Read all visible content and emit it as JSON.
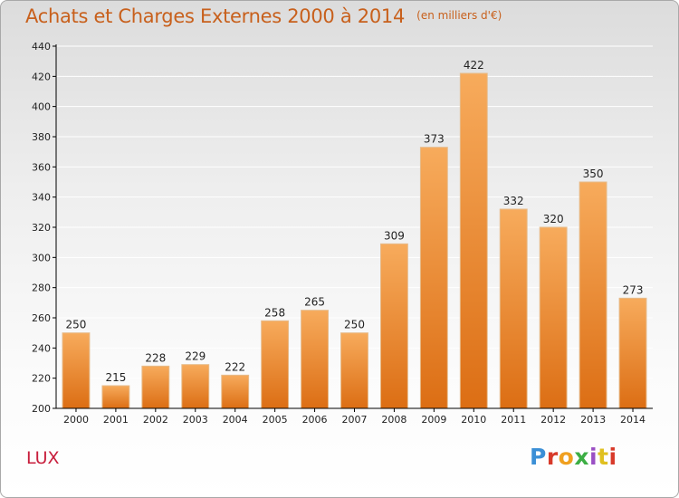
{
  "title": "Achats et Charges Externes 2000 à 2014",
  "subtitle": "(en milliers d'€)",
  "commune": "LUX",
  "logo_text": "Proxiti",
  "logo_colors": [
    "#3b8fd6",
    "#d83a2a",
    "#f0a020",
    "#3cae44",
    "#9a4fc4",
    "#e0c020",
    "#d83a2a"
  ],
  "colors": {
    "bar_light": "#f7ab5c",
    "bar_dark": "#dc6e14",
    "bar_edge": "#e6bb8a",
    "axis": "#000000",
    "grid": "#ffffff",
    "title": "#c8601c",
    "commune": "#c81e3c"
  },
  "chart_data": {
    "type": "bar",
    "title": "Achats et Charges Externes 2000 à 2014",
    "subtitle": "(en milliers d'€)",
    "xlabel": "",
    "ylabel": "",
    "categories": [
      "2000",
      "2001",
      "2002",
      "2003",
      "2004",
      "2005",
      "2006",
      "2007",
      "2008",
      "2009",
      "2010",
      "2011",
      "2012",
      "2013",
      "2014"
    ],
    "values": [
      250,
      215,
      228,
      229,
      222,
      258,
      265,
      250,
      309,
      373,
      422,
      332,
      320,
      350,
      273
    ],
    "ylim": [
      200,
      440
    ],
    "yticks": [
      200,
      220,
      240,
      260,
      280,
      300,
      320,
      340,
      360,
      380,
      400,
      420,
      440
    ],
    "grid": true,
    "data_labels": true
  }
}
